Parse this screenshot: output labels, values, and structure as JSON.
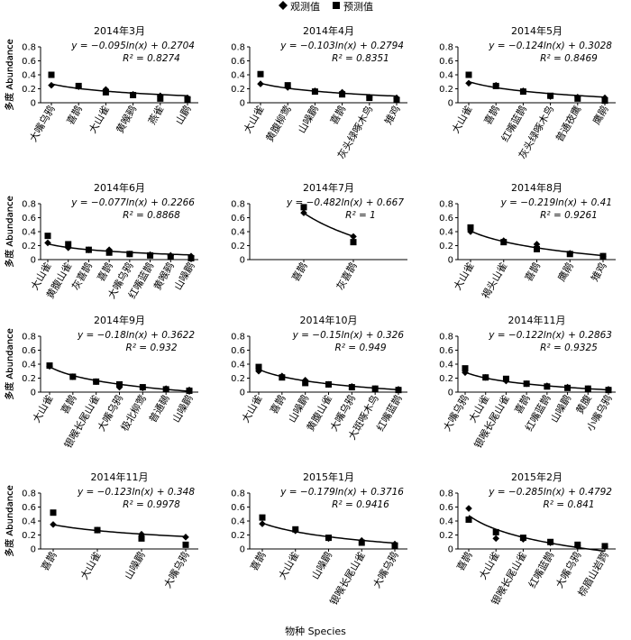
{
  "legend": {
    "observed_label": "观测值",
    "predicted_label": "预测值",
    "observed_marker": "diamond",
    "predicted_marker": "square",
    "placement": "top-center"
  },
  "figure": {
    "ylabel": "多度 Abundance",
    "xlabel": "物种 Species"
  },
  "chart_data": [
    {
      "type": "scatter",
      "title": "2014年3月",
      "equation": "y = −0.095ln(x) + 0.2704",
      "r2_label": "R² = 0.8274",
      "fit": {
        "a": -0.095,
        "b": 0.2704
      },
      "categories": [
        "大嘴乌鸦",
        "喜鹊",
        "大山雀",
        "黄喉鹀",
        "燕雀",
        "山鹛"
      ],
      "series": [
        {
          "name": "观测值",
          "values": [
            0.25,
            0.23,
            0.19,
            0.12,
            0.1,
            0.07
          ]
        },
        {
          "name": "预测值",
          "values": [
            0.4,
            0.24,
            0.15,
            0.11,
            0.06,
            0.05
          ]
        }
      ],
      "yticks": [
        "0",
        "0.2",
        "0.4",
        "0.6",
        "0.8"
      ],
      "ylim": [
        0,
        0.8
      ]
    },
    {
      "type": "scatter",
      "title": "2014年4月",
      "equation": "y = −0.103ln(x) + 0.2794",
      "r2_label": "R² = 0.8351",
      "fit": {
        "a": -0.103,
        "b": 0.2794
      },
      "categories": [
        "大山雀",
        "黄腹柳莺",
        "山噪鹛",
        "喜鹊",
        "灰头绿啄木鸟",
        "雉鸡"
      ],
      "series": [
        {
          "name": "观测值",
          "values": [
            0.27,
            0.22,
            0.17,
            0.15,
            0.08,
            0.07
          ]
        },
        {
          "name": "预测值",
          "values": [
            0.41,
            0.25,
            0.16,
            0.12,
            0.07,
            0.04
          ]
        }
      ],
      "yticks": [
        "0",
        "0.2",
        "0.4",
        "0.6",
        "0.8"
      ],
      "ylim": [
        0,
        0.8
      ]
    },
    {
      "type": "scatter",
      "title": "2014年5月",
      "equation": "y = −0.124ln(x) + 0.3028",
      "r2_label": "R² = 0.8469",
      "fit": {
        "a": -0.124,
        "b": 0.3028
      },
      "categories": [
        "大山雀",
        "喜鹊",
        "红嘴蓝鹊",
        "灰头绿啄木鸟",
        "普通夜鹰",
        "鹰鹃"
      ],
      "series": [
        {
          "name": "观测值",
          "values": [
            0.28,
            0.25,
            0.17,
            0.09,
            0.08,
            0.07
          ]
        },
        {
          "name": "预测值",
          "values": [
            0.4,
            0.24,
            0.16,
            0.1,
            0.06,
            0.03
          ]
        }
      ],
      "yticks": [
        "0",
        "0.2",
        "0.4",
        "0.6",
        "0.8"
      ],
      "ylim": [
        0,
        0.8
      ]
    },
    {
      "type": "scatter",
      "title": "2014年6月",
      "equation": "y = −0.077ln(x) + 0.2266",
      "r2_label": "R² = 0.8868",
      "fit": {
        "a": -0.077,
        "b": 0.2266
      },
      "categories": [
        "大山雀",
        "黄腹山雀",
        "灰喜鹊",
        "喜鹊",
        "大嘴乌鸦",
        "红嘴蓝鹊",
        "黄喉鹀",
        "山噪鹛"
      ],
      "series": [
        {
          "name": "观测值",
          "values": [
            0.24,
            0.17,
            0.14,
            0.14,
            0.08,
            0.07,
            0.06,
            0.05
          ]
        },
        {
          "name": "预测值",
          "values": [
            0.34,
            0.22,
            0.14,
            0.1,
            0.08,
            0.06,
            0.04,
            0.02
          ]
        }
      ],
      "yticks": [
        "0",
        "0.2",
        "0.4",
        "0.6",
        "0.8"
      ],
      "ylim": [
        0,
        0.8
      ]
    },
    {
      "type": "scatter",
      "title": "2014年7月",
      "equation": "y = −0.482ln(x) + 0.667",
      "r2_label": "R² = 1",
      "fit": {
        "a": -0.482,
        "b": 0.667
      },
      "categories": [
        "喜鹊",
        "灰喜鹊"
      ],
      "series": [
        {
          "name": "观测值",
          "values": [
            0.67,
            0.33
          ]
        },
        {
          "name": "预测值",
          "values": [
            0.75,
            0.25
          ]
        }
      ],
      "yticks": [
        "0",
        "0.2",
        "0.4",
        "0.6",
        "0.8"
      ],
      "ylim": [
        0,
        0.8
      ]
    },
    {
      "type": "scatter",
      "title": "2014年8月",
      "equation": "y = −0.219ln(x) + 0.41",
      "r2_label": "R² = 0.9261",
      "fit": {
        "a": -0.219,
        "b": 0.41
      },
      "categories": [
        "大山雀",
        "褐头山雀",
        "喜鹊",
        "鹰鹃",
        "雉鸡"
      ],
      "series": [
        {
          "name": "观测值",
          "values": [
            0.4,
            0.27,
            0.22,
            0.09,
            0.05
          ]
        },
        {
          "name": "预测值",
          "values": [
            0.46,
            0.25,
            0.15,
            0.08,
            0.05
          ]
        }
      ],
      "yticks": [
        "0",
        "0.2",
        "0.4",
        "0.6",
        "0.8"
      ],
      "ylim": [
        0,
        0.8
      ]
    },
    {
      "type": "scatter",
      "title": "2014年9月",
      "equation": "y = −0.18ln(x) + 0.3622",
      "r2_label": "R² = 0.932",
      "fit": {
        "a": -0.18,
        "b": 0.3622
      },
      "categories": [
        "大山雀",
        "喜鹊",
        "银喉长尾山雀",
        "大嘴乌鸦",
        "极北柳莺",
        "普通鳾",
        "山噪鹛"
      ],
      "series": [
        {
          "name": "观测值",
          "values": [
            0.37,
            0.22,
            0.15,
            0.07,
            0.06,
            0.05,
            0.03
          ]
        },
        {
          "name": "预测值",
          "values": [
            0.38,
            0.22,
            0.15,
            0.11,
            0.07,
            0.04,
            0.02
          ]
        }
      ],
      "yticks": [
        "0",
        "0.2",
        "0.4",
        "0.6",
        "0.8"
      ],
      "ylim": [
        0,
        0.8
      ]
    },
    {
      "type": "scatter",
      "title": "2014年10月",
      "equation": "y = −0.15ln(x) + 0.326",
      "r2_label": "R² = 0.949",
      "fit": {
        "a": -0.15,
        "b": 0.326
      },
      "categories": [
        "大山雀",
        "喜鹊",
        "山噪鹛",
        "黄腹山雀",
        "大嘴乌鸦",
        "大斑啄木鸟",
        "红嘴蓝鹊"
      ],
      "series": [
        {
          "name": "观测值",
          "values": [
            0.3,
            0.23,
            0.17,
            0.11,
            0.08,
            0.05,
            0.04
          ]
        },
        {
          "name": "预测值",
          "values": [
            0.36,
            0.21,
            0.13,
            0.11,
            0.07,
            0.05,
            0.03
          ]
        }
      ],
      "yticks": [
        "0",
        "0.2",
        "0.4",
        "0.6",
        "0.8"
      ],
      "ylim": [
        0,
        0.8
      ]
    },
    {
      "type": "scatter",
      "title": "2014年11月",
      "equation": "y = −0.122ln(x) + 0.2863",
      "r2_label": "R² = 0.9325",
      "fit": {
        "a": -0.122,
        "b": 0.2863
      },
      "categories": [
        "大嘴乌鸦",
        "大山雀",
        "银喉长尾山雀",
        "喜鹊",
        "红嘴蓝鹊",
        "山噪鹛",
        "黄腹",
        "小嘴乌鸦"
      ],
      "series": [
        {
          "name": "观测值",
          "values": [
            0.28,
            0.21,
            0.16,
            0.12,
            0.09,
            0.07,
            0.05,
            0.04
          ]
        },
        {
          "name": "预测值",
          "values": [
            0.34,
            0.21,
            0.19,
            0.12,
            0.08,
            0.06,
            0.05,
            0.03
          ]
        }
      ],
      "yticks": [
        "0",
        "0.2",
        "0.4",
        "0.6",
        "0.8"
      ],
      "ylim": [
        0,
        0.8
      ]
    },
    {
      "type": "scatter",
      "title": "2014年11月",
      "equation": "y = −0.123ln(x) + 0.348",
      "r2_label": "R² = 0.9978",
      "fit": {
        "a": -0.123,
        "b": 0.348
      },
      "categories": [
        "喜鹊",
        "大山雀",
        "山噪鹛",
        "大嘴乌鸦"
      ],
      "series": [
        {
          "name": "观测值",
          "values": [
            0.35,
            0.27,
            0.21,
            0.17
          ]
        },
        {
          "name": "预测值",
          "values": [
            0.52,
            0.27,
            0.15,
            0.06
          ]
        }
      ],
      "yticks": [
        "0",
        "0.2",
        "0.4",
        "0.6",
        "0.8"
      ],
      "ylim": [
        0,
        0.8
      ]
    },
    {
      "type": "scatter",
      "title": "2015年1月",
      "equation": "y = −0.179ln(x) + 0.3716",
      "r2_label": "R² = 0.9416",
      "fit": {
        "a": -0.179,
        "b": 0.3716
      },
      "categories": [
        "喜鹊",
        "大山雀",
        "山噪鹛",
        "银喉长尾山雀",
        "大嘴乌鸦"
      ],
      "series": [
        {
          "name": "观测值",
          "values": [
            0.36,
            0.26,
            0.15,
            0.12,
            0.07
          ]
        },
        {
          "name": "预测值",
          "values": [
            0.45,
            0.28,
            0.16,
            0.09,
            0.05
          ]
        }
      ],
      "yticks": [
        "0",
        "0.2",
        "0.4",
        "0.6",
        "0.8"
      ],
      "ylim": [
        0,
        0.8
      ]
    },
    {
      "type": "scatter",
      "title": "2015年2月",
      "equation": "y = −0.285ln(x) + 0.4792",
      "r2_label": "R² = 0.841",
      "fit": {
        "a": -0.285,
        "b": 0.4792
      },
      "categories": [
        "喜鹊",
        "大山雀",
        "银喉长尾山雀",
        "红嘴蓝鹊",
        "大嘴乌鸦",
        "棕眉山岩鹨"
      ],
      "series": [
        {
          "name": "观测值",
          "values": [
            0.58,
            0.15,
            0.14,
            0.09,
            0.04,
            0.03
          ]
        },
        {
          "name": "预测值",
          "values": [
            0.42,
            0.24,
            0.16,
            0.1,
            0.06,
            0.04
          ]
        }
      ],
      "yticks": [
        "0",
        "0.2",
        "0.4",
        "0.6",
        "0.8"
      ],
      "ylim": [
        0,
        0.8
      ]
    }
  ]
}
